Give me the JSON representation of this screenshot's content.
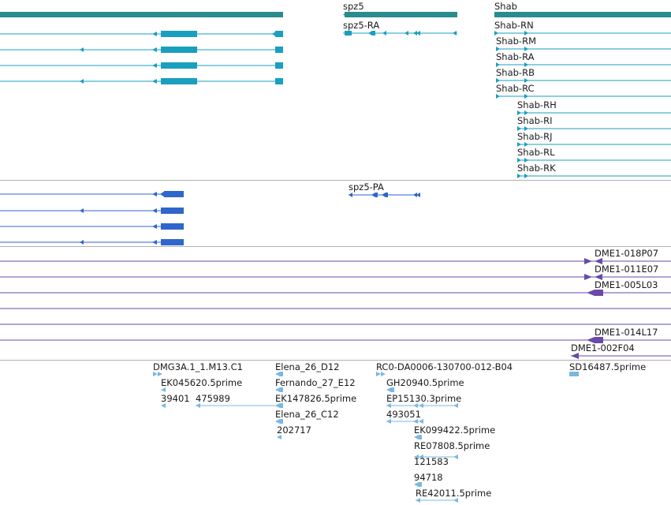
{
  "colors": {
    "gene": "#2a8c8c",
    "transcript": "#1a9fbf",
    "protein": "#2f66cc",
    "clone": "#6a4aa8",
    "est": "#7ab8e0",
    "track_divider": "#b0b0b0"
  },
  "tracks": {
    "genes": [
      "spz5",
      "Shab"
    ],
    "transcripts": [
      "spz5-RA",
      "Shab-RN",
      "Shab-RM",
      "Shab-RA",
      "Shab-RB",
      "Shab-RC",
      "Shab-RH",
      "Shab-RI",
      "Shab-RJ",
      "Shab-RL",
      "Shab-RK"
    ],
    "proteins": [
      "spz5-PA"
    ],
    "clones": [
      "DME1-018P07",
      "DME1-011E07",
      "DME1-005L03",
      "DME1-014L17",
      "DME1-002F04"
    ],
    "ests": [
      "DMG3A.1_1.M13.C1",
      "EK045620.5prime",
      "39401",
      "475989",
      "Elena_26_D12",
      "Fernando_27_E12",
      "EK147826.5prime",
      "Elena_26_C12",
      "202717",
      "RC0-DA0006-130700-012-B04",
      "GH20940.5prime",
      "EP15130.3prime",
      "493051",
      "EK099422.5prime",
      "RE07808.5prime",
      "121583",
      "94718",
      "RE42011.5prime",
      "SD16487.5prime"
    ]
  }
}
